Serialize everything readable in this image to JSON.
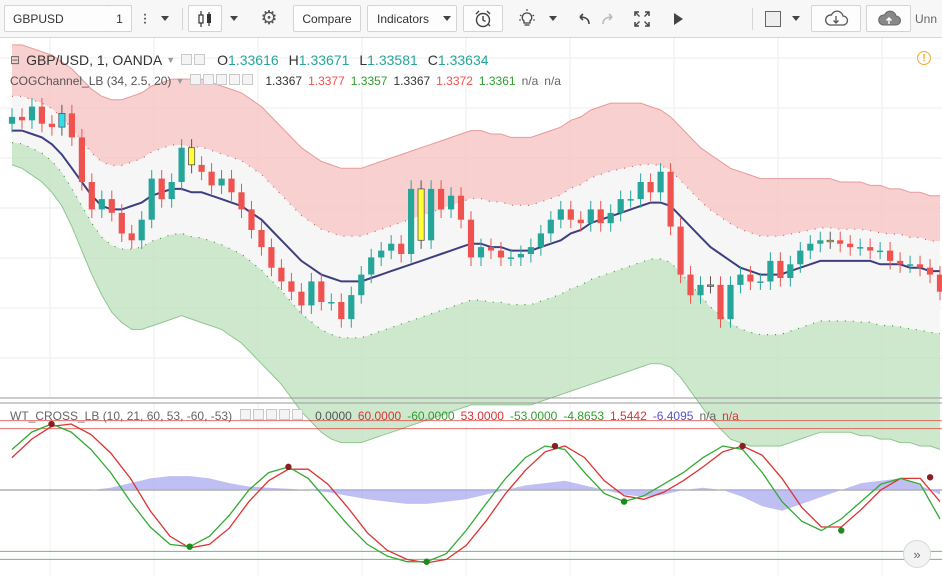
{
  "toolbar": {
    "symbol": "GBPUSD",
    "interval": "1",
    "compare_label": "Compare",
    "indicators_label": "Indicators",
    "unnamed_label": "Unn"
  },
  "legend": {
    "main": {
      "title": "GBP/USD, 1, OANDA",
      "o_label": "O",
      "o": "1.33616",
      "h_label": "H",
      "h": "1.33671",
      "l_label": "L",
      "l": "1.33581",
      "c_label": "C",
      "c": "1.33634"
    },
    "cog": {
      "title": "COGChannel_LB (34, 2.5, 20)",
      "values": [
        "1.3367",
        "1.3377",
        "1.3357",
        "1.3367",
        "1.3372",
        "1.3361",
        "n/a",
        "n/a"
      ]
    },
    "wt": {
      "title": "WT_CROSS_LB (10, 21, 60, 53, -60, -53)",
      "values": [
        "0.0000",
        "60.0000",
        "-60.0000",
        "53.0000",
        "-53.0000",
        "-4.8653",
        "1.5442",
        "-6.4095",
        "n/a",
        "n/a"
      ]
    }
  },
  "colors": {
    "up": "#26a69a",
    "down": "#ef5350",
    "yellow_bar": "#ffff33",
    "cyan_bar": "#33ddee",
    "center_line": "#3f3f7f",
    "upper_band": "#f5c0c0",
    "lower_band": "#c2e2c2",
    "wt1": "#33aa33",
    "wt2": "#dd3333",
    "wt_hist": "#aaaaf0"
  },
  "chart_data": [
    {
      "type": "candlestick",
      "title": "GBP/USD, 1, OANDA",
      "ylim": [
        1.33,
        1.3405
      ],
      "x": [
        1,
        2,
        3,
        4,
        5,
        6,
        7,
        8,
        9,
        10,
        11,
        12,
        13,
        14,
        15,
        16,
        17,
        18,
        19,
        20,
        21,
        22,
        23,
        24,
        25,
        26,
        27,
        28,
        29,
        30,
        31,
        32,
        33,
        34,
        35,
        36,
        37,
        38,
        39,
        40,
        41,
        42,
        43,
        44,
        45,
        46,
        47,
        48,
        49,
        50,
        51,
        52,
        53,
        54,
        55,
        56,
        57,
        58,
        59,
        60,
        61,
        62,
        63,
        64,
        65,
        66,
        67,
        68,
        69,
        70,
        71,
        72,
        73,
        74,
        75,
        76,
        77,
        78,
        79,
        80,
        81,
        82,
        83,
        84,
        85,
        86,
        87,
        88,
        89,
        90,
        91,
        92,
        93,
        94
      ],
      "open": [
        1.338,
        1.3382,
        1.3381,
        1.3385,
        1.338,
        1.3379,
        1.3383,
        1.3376,
        1.3363,
        1.3355,
        1.3358,
        1.3354,
        1.3348,
        1.3346,
        1.3352,
        1.3364,
        1.3358,
        1.3363,
        1.3373,
        1.3368,
        1.3366,
        1.3362,
        1.3364,
        1.336,
        1.3355,
        1.3349,
        1.3344,
        1.3338,
        1.3334,
        1.3331,
        1.3327,
        1.3334,
        1.3328,
        1.3328,
        1.3323,
        1.333,
        1.3336,
        1.3341,
        1.3343,
        1.3345,
        1.3342,
        1.3361,
        1.3346,
        1.3361,
        1.3355,
        1.3359,
        1.3352,
        1.3341,
        1.3344,
        1.3343,
        1.3341,
        1.3341,
        1.3342,
        1.3344,
        1.3348,
        1.3352,
        1.3355,
        1.3352,
        1.3351,
        1.3355,
        1.3351,
        1.3354,
        1.3358,
        1.3358,
        1.3363,
        1.336,
        1.3366,
        1.335,
        1.3336,
        1.333,
        1.3333,
        1.3333,
        1.3323,
        1.3333,
        1.3336,
        1.3334,
        1.3334,
        1.334,
        1.3335,
        1.3339,
        1.3343,
        1.3345,
        1.3346,
        1.3346,
        1.3345,
        1.3344,
        1.3344,
        1.3343,
        1.3343,
        1.334,
        1.3339,
        1.3339,
        1.3338,
        1.3336
      ],
      "close": [
        1.3382,
        1.3381,
        1.3385,
        1.338,
        1.3379,
        1.3383,
        1.3376,
        1.3363,
        1.3355,
        1.3358,
        1.3354,
        1.3348,
        1.3346,
        1.3352,
        1.3364,
        1.3358,
        1.3363,
        1.3373,
        1.3368,
        1.3366,
        1.3362,
        1.3364,
        1.336,
        1.3355,
        1.3349,
        1.3344,
        1.3338,
        1.3334,
        1.3331,
        1.3327,
        1.3334,
        1.3328,
        1.3328,
        1.3323,
        1.333,
        1.3336,
        1.3341,
        1.3343,
        1.3345,
        1.3342,
        1.3361,
        1.3346,
        1.3361,
        1.3355,
        1.3359,
        1.3352,
        1.3341,
        1.3344,
        1.3343,
        1.3341,
        1.3341,
        1.3342,
        1.3344,
        1.3348,
        1.3352,
        1.3355,
        1.3352,
        1.3351,
        1.3355,
        1.3351,
        1.3354,
        1.3358,
        1.3358,
        1.3363,
        1.336,
        1.3366,
        1.335,
        1.3336,
        1.333,
        1.3333,
        1.3333,
        1.3323,
        1.3333,
        1.3336,
        1.3334,
        1.3334,
        1.334,
        1.3335,
        1.3339,
        1.3343,
        1.3345,
        1.3346,
        1.3346,
        1.3345,
        1.3344,
        1.3344,
        1.3343,
        1.3343,
        1.334,
        1.3339,
        1.3339,
        1.3338,
        1.3336,
        1.3331
      ],
      "highlight": {
        "yellow": [
          18,
          41,
          82
        ],
        "cyan": [
          5,
          70
        ]
      },
      "cog_center": [
        1.3378,
        1.3378,
        1.3377,
        1.3376,
        1.3374,
        1.3371,
        1.3367,
        1.3363,
        1.3359,
        1.3356,
        1.3355,
        1.3355,
        1.3356,
        1.3357,
        1.3359,
        1.336,
        1.3361,
        1.3361,
        1.336,
        1.336,
        1.3359,
        1.3358,
        1.3357,
        1.3356,
        1.3354,
        1.3352,
        1.3349,
        1.3346,
        1.3343,
        1.334,
        1.3338,
        1.3336,
        1.3335,
        1.3334,
        1.3334,
        1.3334,
        1.3335,
        1.3336,
        1.3337,
        1.3338,
        1.3339,
        1.334,
        1.3341,
        1.3342,
        1.3343,
        1.3344,
        1.3345,
        1.3345,
        1.3344,
        1.3344,
        1.3343,
        1.3343,
        1.3343,
        1.3344,
        1.3345,
        1.3346,
        1.3348,
        1.3349,
        1.3351,
        1.3352,
        1.3353,
        1.3354,
        1.3355,
        1.3356,
        1.3357,
        1.3357,
        1.3356,
        1.3353,
        1.335,
        1.3347,
        1.3344,
        1.3342,
        1.334,
        1.3338,
        1.3337,
        1.3336,
        1.3336,
        1.3336,
        1.3337,
        1.3338,
        1.3339,
        1.334,
        1.334,
        1.334,
        1.334,
        1.334,
        1.334,
        1.3339,
        1.3339,
        1.3339,
        1.3338,
        1.3338,
        1.3337,
        1.3337
      ],
      "cog_upper": [
        1.3403,
        1.3403,
        1.3402,
        1.3401,
        1.34,
        1.3398,
        1.3396,
        1.3393,
        1.339,
        1.3388,
        1.3387,
        1.3387,
        1.3388,
        1.3389,
        1.3391,
        1.3392,
        1.3393,
        1.3393,
        1.3393,
        1.3393,
        1.3392,
        1.3391,
        1.339,
        1.3389,
        1.3387,
        1.3385,
        1.3382,
        1.3379,
        1.3376,
        1.3373,
        1.3371,
        1.3369,
        1.3368,
        1.3367,
        1.3367,
        1.3367,
        1.3368,
        1.3369,
        1.337,
        1.3371,
        1.3372,
        1.3373,
        1.3374,
        1.3375,
        1.3376,
        1.3377,
        1.3378,
        1.3378,
        1.3377,
        1.3377,
        1.3376,
        1.3376,
        1.3376,
        1.3377,
        1.3378,
        1.3379,
        1.3381,
        1.3382,
        1.3384,
        1.3385,
        1.3386,
        1.3386,
        1.3386,
        1.3386,
        1.3385,
        1.3384,
        1.3382,
        1.3379,
        1.3376,
        1.3373,
        1.3371,
        1.3369,
        1.3367,
        1.3366,
        1.3365,
        1.3364,
        1.3364,
        1.3364,
        1.3364,
        1.3364,
        1.3364,
        1.3364,
        1.3364,
        1.3363,
        1.3363,
        1.3363,
        1.3362,
        1.3362,
        1.3361,
        1.3361,
        1.336,
        1.336,
        1.3359,
        1.3359
      ],
      "cog_lower": [
        1.3368,
        1.3367,
        1.3365,
        1.3363,
        1.336,
        1.3356,
        1.335,
        1.3343,
        1.3336,
        1.333,
        1.3325,
        1.3322,
        1.332,
        1.332,
        1.3321,
        1.3322,
        1.3323,
        1.3324,
        1.3323,
        1.3322,
        1.3321,
        1.332,
        1.3318,
        1.3316,
        1.3313,
        1.331,
        1.3307,
        1.3304,
        1.33,
        1.3296,
        1.3293,
        1.329,
        1.3288,
        1.3287,
        1.3287,
        1.3287,
        1.3288,
        1.3289,
        1.329,
        1.3291,
        1.3292,
        1.3293,
        1.3294,
        1.3295,
        1.3296,
        1.3297,
        1.3298,
        1.3298,
        1.3298,
        1.3298,
        1.3298,
        1.3298,
        1.3298,
        1.3299,
        1.33,
        1.3301,
        1.3302,
        1.3303,
        1.3304,
        1.3305,
        1.3306,
        1.3307,
        1.3308,
        1.3309,
        1.331,
        1.331,
        1.3309,
        1.3306,
        1.3302,
        1.3298,
        1.3294,
        1.3291,
        1.3288,
        1.3287,
        1.3286,
        1.3286,
        1.3286,
        1.3286,
        1.3287,
        1.3288,
        1.3289,
        1.329,
        1.329,
        1.329,
        1.329,
        1.3289,
        1.3289,
        1.3288,
        1.3288,
        1.3287,
        1.3287,
        1.3286,
        1.3286,
        1.3285
      ]
    },
    {
      "type": "line",
      "title": "WT_CROSS_LB (10, 21, 60, 53, -60, -53)",
      "ylim": [
        -70,
        70
      ],
      "levels": [
        60,
        53,
        0,
        -53,
        -60
      ],
      "x": [
        0,
        2,
        4,
        6,
        8,
        10,
        12,
        14,
        16,
        18,
        20,
        22,
        24,
        26,
        28,
        30,
        32,
        34,
        36,
        38,
        40,
        42,
        44,
        46,
        48,
        50,
        52,
        54,
        56,
        58,
        60,
        62,
        64,
        66,
        68,
        70,
        72,
        74,
        76,
        78,
        80,
        82,
        84,
        86,
        88,
        90,
        92,
        94
      ],
      "wt1": [
        35,
        50,
        57,
        50,
        35,
        15,
        -10,
        -32,
        -47,
        -49,
        -40,
        -22,
        0,
        15,
        20,
        10,
        -10,
        -30,
        -47,
        -57,
        -62,
        -62,
        -55,
        -35,
        -12,
        10,
        28,
        38,
        35,
        15,
        -3,
        -10,
        -5,
        5,
        15,
        28,
        38,
        35,
        15,
        -10,
        -27,
        -35,
        -25,
        -10,
        5,
        10,
        5,
        -25
      ],
      "wt2": [
        28,
        44,
        55,
        57,
        48,
        32,
        10,
        -18,
        -40,
        -50,
        -47,
        -33,
        -10,
        8,
        18,
        18,
        5,
        -15,
        -37,
        -52,
        -60,
        -63,
        -60,
        -48,
        -27,
        -3,
        17,
        33,
        38,
        28,
        8,
        -5,
        -8,
        -2,
        8,
        20,
        33,
        38,
        30,
        10,
        -15,
        -32,
        -32,
        -17,
        0,
        10,
        10,
        -10
      ],
      "hist": [
        0,
        0,
        0,
        0,
        0,
        2,
        6,
        10,
        12,
        12,
        10,
        6,
        3,
        2,
        1,
        0,
        -2,
        -5,
        -8,
        -10,
        -12,
        -12,
        -10,
        -8,
        -4,
        0,
        4,
        6,
        8,
        4,
        0,
        -4,
        -6,
        -4,
        0,
        2,
        0,
        -6,
        -14,
        -18,
        -12,
        -6,
        0,
        6,
        8,
        10,
        4,
        -4
      ],
      "markers": [
        {
          "x": 4,
          "y": 57,
          "kind": "cross-down"
        },
        {
          "x": 18,
          "y": -49,
          "kind": "cross-up"
        },
        {
          "x": 28,
          "y": 20,
          "kind": "cross-down"
        },
        {
          "x": 42,
          "y": -62,
          "kind": "cross-up"
        },
        {
          "x": 55,
          "y": 38,
          "kind": "cross-down"
        },
        {
          "x": 62,
          "y": -10,
          "kind": "cross-up"
        },
        {
          "x": 74,
          "y": 38,
          "kind": "cross-down"
        },
        {
          "x": 84,
          "y": -35,
          "kind": "cross-up"
        },
        {
          "x": 93,
          "y": 11,
          "kind": "cross-down"
        }
      ]
    }
  ]
}
